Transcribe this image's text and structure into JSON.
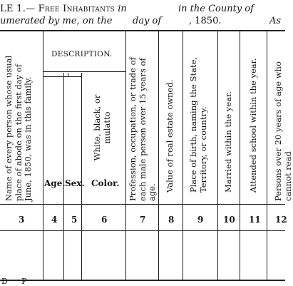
{
  "header": {
    "line1_prefix": "LE 1.—",
    "line1_title": "Free Inhabitants",
    "line1_in": "in",
    "line1_county": "in the County of",
    "line2_enum": "umerated by me, on the",
    "line2_day": "day of",
    "line2_year": ", 1850.",
    "line2_right": "As"
  },
  "description_group": "DESCRIPTION.",
  "columns": [
    {
      "num": "3",
      "label": "Name of every person whose usual place of abode on the first day of June, 1850, was in this family."
    },
    {
      "num": "4",
      "label": "Age."
    },
    {
      "num": "5",
      "label": "Sex."
    },
    {
      "num": "6",
      "label": "Color.",
      "sublabel": "White, black, or mulatto"
    },
    {
      "num": "7",
      "label": "Profession, occupation, or trade of each male person over 15 years of age."
    },
    {
      "num": "8",
      "label": "Value of real estate owned."
    },
    {
      "num": "9",
      "label": "Place of birth, naming the State, Territory, or country."
    },
    {
      "num": "10",
      "label": "Married within the year."
    },
    {
      "num": "11",
      "label": "Attended school within the year."
    },
    {
      "num": "12",
      "label": "Persons over 20 years of age who cannot read"
    }
  ],
  "footer_fragment": "D     P"
}
